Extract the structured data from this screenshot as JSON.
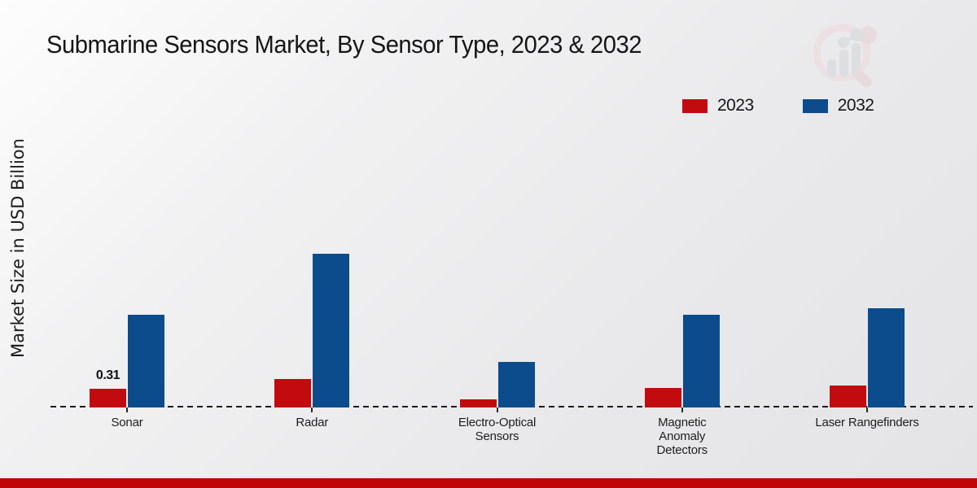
{
  "page": {
    "title": "Submarine Sensors Market, By Sensor Type, 2023 & 2032",
    "y_axis_label": "Market Size in USD Billion"
  },
  "legend": [
    {
      "label": "2023",
      "color": "#c20b0e"
    },
    {
      "label": "2032",
      "color": "#0c4c8c"
    }
  ],
  "colors": {
    "bar_2023": "#c20b0e",
    "bar_2032": "#0c4c8c",
    "footer_strip": "#c00508",
    "axis_line": "#1a1a1a"
  },
  "watermark": "market-research-future-logo",
  "chart_data": {
    "type": "bar",
    "title": "Submarine Sensors Market, By Sensor Type, 2023 & 2032",
    "xlabel": "",
    "ylabel": "Market Size in USD Billion",
    "ylim": [
      0,
      2.8
    ],
    "grid": false,
    "legend_position": "top-right",
    "categories": [
      "Sonar",
      "Radar",
      "Electro-Optical Sensors",
      "Magnetic Anomaly Detectors",
      "Laser Rangefinders"
    ],
    "series": [
      {
        "name": "2023",
        "color": "#c20b0e",
        "values": [
          0.31,
          0.47,
          0.13,
          0.33,
          0.36
        ]
      },
      {
        "name": "2032",
        "color": "#0c4c8c",
        "values": [
          1.54,
          2.56,
          0.75,
          1.54,
          1.65
        ]
      }
    ],
    "annotations": [
      {
        "series": 0,
        "category": 0,
        "text": "0.31"
      }
    ]
  }
}
